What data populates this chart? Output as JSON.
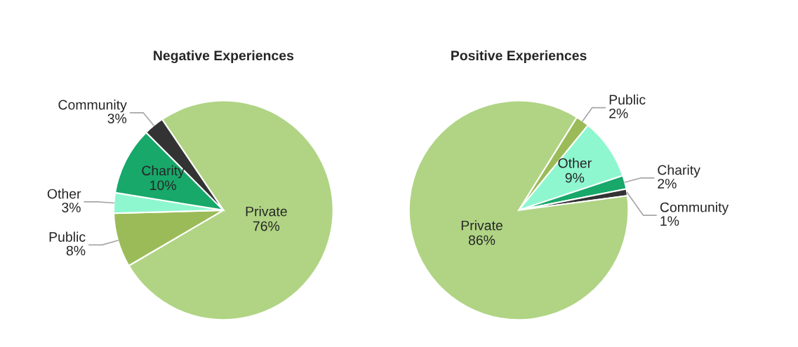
{
  "chart_data": [
    {
      "type": "pie",
      "title": "Negative Experiences",
      "categories": [
        "Private",
        "Public",
        "Other",
        "Charity",
        "Community"
      ],
      "values": [
        76,
        8,
        3,
        10,
        3
      ],
      "value_labels": [
        "76%",
        "8%",
        "3%",
        "10%",
        "3%"
      ],
      "colors": [
        "#b0d484",
        "#9bbb59",
        "#8ef7cf",
        "#17a86a",
        "#333333"
      ]
    },
    {
      "type": "pie",
      "title": "Positive Experiences",
      "categories": [
        "Public",
        "Other",
        "Charity",
        "Community",
        "Private"
      ],
      "values": [
        2,
        9,
        2,
        1,
        86
      ],
      "value_labels": [
        "2%",
        "9%",
        "2%",
        "1%",
        "86%"
      ],
      "colors": [
        "#9bbb59",
        "#8ef7cf",
        "#17a86a",
        "#333333",
        "#b0d484"
      ]
    }
  ]
}
